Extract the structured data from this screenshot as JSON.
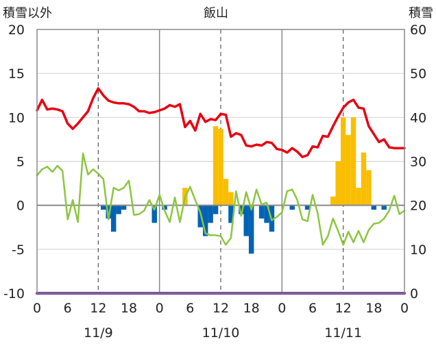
{
  "chart_data": {
    "type": "bar+line",
    "title": "飯山",
    "left_axis_label": "積雪以外",
    "right_axis_label": "積雪",
    "y_left": {
      "min": -10,
      "max": 20,
      "ticks": [
        -10,
        -5,
        0,
        5,
        10,
        15,
        20
      ]
    },
    "y_right": {
      "min": 0,
      "max": 60,
      "ticks": [
        0,
        10,
        20,
        30,
        40,
        50,
        60
      ]
    },
    "x": {
      "min": 0,
      "max": 72,
      "tick_step": 3,
      "tick_labels": [
        "0",
        "6",
        "12",
        "18",
        "0",
        "6",
        "12",
        "18",
        "0",
        "6",
        "12",
        "18",
        "0"
      ],
      "tick_label_hours": [
        0,
        6,
        12,
        18,
        24,
        30,
        36,
        42,
        48,
        54,
        60,
        66,
        72
      ]
    },
    "date_labels": [
      {
        "label": "11/9",
        "hour": 12
      },
      {
        "label": "11/10",
        "hour": 36
      },
      {
        "label": "11/11",
        "hour": 60
      }
    ],
    "colors": {
      "temperature": "#e60012",
      "snowfall": "#fabe00",
      "precipitation_neg": "#0063b4",
      "green_line": "#8cc63f",
      "snow_depth": "#7030a0",
      "grid_dashed": "#555555",
      "frame": "#888888"
    },
    "series": [
      {
        "name": "",
        "kind": "line",
        "axis": "left",
        "color": "#e60012",
        "points": [
          [
            0,
            10.8
          ],
          [
            1,
            12
          ],
          [
            2,
            10.9
          ],
          [
            3,
            11
          ],
          [
            4,
            10.9
          ],
          [
            5,
            10.7
          ],
          [
            6,
            9.3
          ],
          [
            7,
            8.7
          ],
          [
            8,
            9.3
          ],
          [
            9,
            10
          ],
          [
            10,
            10.7
          ],
          [
            11,
            12.2
          ],
          [
            12,
            13.3
          ],
          [
            13,
            12.5
          ],
          [
            14,
            11.9
          ],
          [
            15,
            11.7
          ],
          [
            16,
            11.6
          ],
          [
            17,
            11.6
          ],
          [
            18,
            11.5
          ],
          [
            19,
            11.2
          ],
          [
            20,
            10.7
          ],
          [
            21,
            10.7
          ],
          [
            22,
            10.5
          ],
          [
            23,
            10.6
          ],
          [
            24,
            10.8
          ],
          [
            25,
            11
          ],
          [
            26,
            11.4
          ],
          [
            27,
            11.2
          ],
          [
            28,
            11.5
          ],
          [
            29,
            8.9
          ],
          [
            30,
            9.6
          ],
          [
            31,
            8.5
          ],
          [
            32,
            10.4
          ],
          [
            33,
            9.5
          ],
          [
            34,
            9.8
          ],
          [
            35,
            9.7
          ],
          [
            36,
            10.4
          ],
          [
            37,
            10.3
          ],
          [
            38,
            7.8
          ],
          [
            39,
            8.2
          ],
          [
            40,
            8
          ],
          [
            41,
            6.8
          ],
          [
            42,
            6.7
          ],
          [
            43,
            6.9
          ],
          [
            44,
            6.8
          ],
          [
            45,
            7.2
          ],
          [
            46,
            7.1
          ],
          [
            47,
            6.4
          ],
          [
            48,
            6.3
          ],
          [
            49,
            6
          ],
          [
            50,
            6.5
          ],
          [
            51,
            6.1
          ],
          [
            52,
            5.5
          ],
          [
            53,
            5.7
          ],
          [
            54,
            6.7
          ],
          [
            55,
            6.6
          ],
          [
            56,
            7.9
          ],
          [
            57,
            7.8
          ],
          [
            58,
            9
          ],
          [
            59,
            10.1
          ],
          [
            60,
            11.1
          ],
          [
            61,
            11.7
          ],
          [
            62,
            12
          ],
          [
            63,
            11.1
          ],
          [
            64,
            11
          ],
          [
            65,
            9
          ],
          [
            66,
            8.1
          ],
          [
            67,
            7.2
          ],
          [
            68,
            7.5
          ],
          [
            69,
            6.6
          ],
          [
            70,
            6.5
          ],
          [
            71,
            6.5
          ],
          [
            72,
            6.5
          ]
        ]
      },
      {
        "name": "",
        "kind": "line",
        "axis": "left",
        "color": "#8cc63f",
        "points": [
          [
            0,
            3.4
          ],
          [
            1,
            4.1
          ],
          [
            2,
            4.4
          ],
          [
            3,
            3.8
          ],
          [
            4,
            4.5
          ],
          [
            5,
            3.9
          ],
          [
            6,
            -1.6
          ],
          [
            7,
            0.6
          ],
          [
            8,
            -1.9
          ],
          [
            9,
            5.9
          ],
          [
            10,
            3.5
          ],
          [
            11,
            4.1
          ],
          [
            12,
            3.6
          ],
          [
            13,
            3
          ],
          [
            14,
            -1.6
          ],
          [
            15,
            2
          ],
          [
            16,
            1.7
          ],
          [
            17,
            2
          ],
          [
            18,
            2.8
          ],
          [
            19,
            -1.1
          ],
          [
            20,
            -1
          ],
          [
            21,
            -0.6
          ],
          [
            22,
            0.6
          ],
          [
            23,
            -0.5
          ],
          [
            24,
            1.2
          ],
          [
            25,
            -0.6
          ],
          [
            26,
            -1.9
          ],
          [
            27,
            0.9
          ],
          [
            28,
            -1.9
          ],
          [
            29,
            0.9
          ],
          [
            30,
            2.1
          ],
          [
            31,
            0.6
          ],
          [
            32,
            -0.8
          ],
          [
            33,
            -3.2
          ],
          [
            34,
            -3.4
          ],
          [
            35,
            -3.4
          ],
          [
            36,
            -3.5
          ],
          [
            37,
            -4.5
          ],
          [
            38,
            -3.7
          ],
          [
            39,
            1.6
          ],
          [
            40,
            -1.2
          ],
          [
            41,
            1.5
          ],
          [
            42,
            -0.5
          ],
          [
            43,
            1.8
          ],
          [
            44,
            0.1
          ],
          [
            45,
            0.3
          ],
          [
            46,
            -1.7
          ],
          [
            47,
            -1.3
          ],
          [
            48,
            -0.8
          ],
          [
            49,
            1.6
          ],
          [
            50,
            1.8
          ],
          [
            51,
            0.6
          ],
          [
            52,
            -1.6
          ],
          [
            53,
            -1.8
          ],
          [
            54,
            1.2
          ],
          [
            55,
            -0.9
          ],
          [
            56,
            -4.5
          ],
          [
            57,
            -3.5
          ],
          [
            58,
            -1.5
          ],
          [
            59,
            -2.9
          ],
          [
            60,
            -4.5
          ],
          [
            61,
            -3
          ],
          [
            62,
            -4.2
          ],
          [
            63,
            -2.9
          ],
          [
            64,
            -4.2
          ],
          [
            65,
            -2.8
          ],
          [
            66,
            -2.1
          ],
          [
            67,
            -2
          ],
          [
            68,
            -1.5
          ],
          [
            69,
            -0.6
          ],
          [
            70,
            1.1
          ],
          [
            71,
            -1
          ],
          [
            72,
            -0.6
          ]
        ]
      },
      {
        "name": "",
        "kind": "bar",
        "axis": "left",
        "color": "#fabe00",
        "values": [
          [
            29,
            2
          ],
          [
            35,
            9
          ],
          [
            36,
            8.7
          ],
          [
            37,
            3
          ],
          [
            38,
            1.5
          ],
          [
            58,
            1
          ],
          [
            59,
            5
          ],
          [
            60,
            10
          ],
          [
            61,
            8
          ],
          [
            62,
            10
          ],
          [
            63,
            2
          ],
          [
            64,
            6
          ],
          [
            65,
            4
          ]
        ]
      },
      {
        "name": "",
        "kind": "bar",
        "axis": "left",
        "color": "#0063b4",
        "values": [
          [
            13,
            -0.5
          ],
          [
            14,
            -1.5
          ],
          [
            15,
            -3
          ],
          [
            16,
            -1
          ],
          [
            17,
            -0.5
          ],
          [
            23,
            -2
          ],
          [
            25,
            -0.5
          ],
          [
            32,
            -2.5
          ],
          [
            33,
            -3.5
          ],
          [
            34,
            -2
          ],
          [
            35,
            -1
          ],
          [
            38,
            -2
          ],
          [
            40,
            -1
          ],
          [
            41,
            -3.5
          ],
          [
            42,
            -5.5
          ],
          [
            44,
            -1.5
          ],
          [
            45,
            -2
          ],
          [
            46,
            -3
          ],
          [
            50,
            -0.5
          ],
          [
            53,
            -0.5
          ],
          [
            66,
            -0.5
          ],
          [
            68,
            -0.5
          ]
        ]
      },
      {
        "name": "",
        "kind": "line",
        "axis": "right",
        "color": "#7030a0",
        "points": [
          [
            0,
            0
          ],
          [
            72,
            0
          ]
        ]
      }
    ]
  }
}
